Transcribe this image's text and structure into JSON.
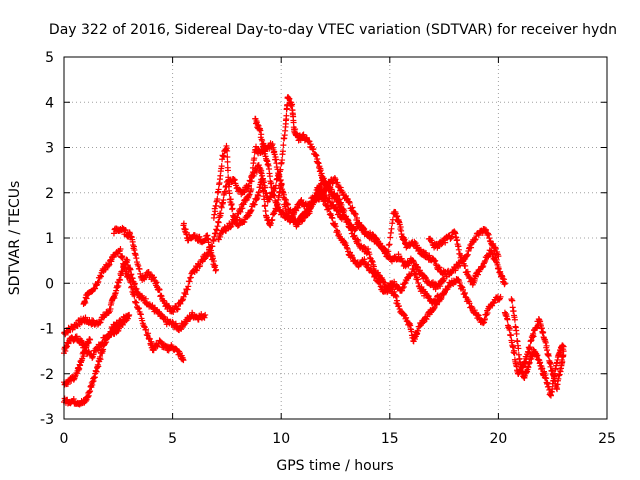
{
  "chart_data": {
    "type": "scatter",
    "title": "Day 322 of 2016, Sidereal Day-to-day VTEC variation (SDTVAR) for receiver hydn",
    "xlabel": "GPS time / hours",
    "ylabel": "SDTVAR / TECUs",
    "xlim": [
      0,
      25
    ],
    "ylim": [
      -3,
      5
    ],
    "xticks": [
      "0",
      "5",
      "10",
      "15",
      "20",
      "25"
    ],
    "yticks": [
      "-3",
      "-2",
      "-1",
      "0",
      "1",
      "2",
      "3",
      "4",
      "5"
    ],
    "grid": true,
    "marker": "+",
    "color": "#ff0000",
    "tracks": [
      [
        [
          0.0,
          -1.1
        ],
        [
          0.3,
          -1.0
        ],
        [
          0.6,
          -0.9
        ],
        [
          0.9,
          -0.8
        ],
        [
          1.2,
          -0.85
        ],
        [
          1.5,
          -0.9
        ],
        [
          1.8,
          -0.75
        ],
        [
          2.1,
          -0.6
        ],
        [
          2.3,
          -0.3
        ],
        [
          2.5,
          0.0
        ],
        [
          2.7,
          0.3
        ],
        [
          2.9,
          0.5
        ],
        [
          3.1,
          0.2
        ],
        [
          3.3,
          -0.1
        ],
        [
          3.5,
          -0.3
        ],
        [
          3.8,
          -0.4
        ],
        [
          4.1,
          -0.55
        ],
        [
          4.4,
          -0.7
        ],
        [
          4.7,
          -0.85
        ],
        [
          5.0,
          -0.9
        ],
        [
          5.3,
          -1.0
        ],
        [
          5.6,
          -0.85
        ],
        [
          5.9,
          -0.7
        ],
        [
          6.2,
          -0.75
        ],
        [
          6.5,
          -0.7
        ]
      ],
      [
        [
          0.0,
          -1.5
        ],
        [
          0.2,
          -1.3
        ],
        [
          0.5,
          -1.2
        ],
        [
          0.8,
          -1.3
        ],
        [
          1.0,
          -1.5
        ],
        [
          1.3,
          -1.6
        ],
        [
          1.6,
          -1.4
        ],
        [
          1.9,
          -1.2
        ],
        [
          2.2,
          -1.1
        ],
        [
          2.5,
          -1.0
        ],
        [
          2.8,
          -0.8
        ],
        [
          3.0,
          -0.7
        ]
      ],
      [
        [
          0.0,
          -2.6
        ],
        [
          0.3,
          -2.6
        ],
        [
          0.6,
          -2.62
        ],
        [
          0.9,
          -2.65
        ],
        [
          1.1,
          -2.5
        ],
        [
          1.3,
          -2.2
        ],
        [
          1.5,
          -1.9
        ],
        [
          1.7,
          -1.6
        ],
        [
          1.9,
          -1.3
        ],
        [
          2.1,
          -1.1
        ],
        [
          2.3,
          -0.95
        ],
        [
          2.6,
          -0.85
        ],
        [
          2.9,
          -0.75
        ]
      ],
      [
        [
          0.0,
          -2.2
        ],
        [
          0.3,
          -2.15
        ],
        [
          0.6,
          -2.0
        ],
        [
          0.8,
          -1.7
        ],
        [
          1.0,
          -1.4
        ],
        [
          1.2,
          -1.25
        ]
      ],
      [
        [
          0.9,
          -0.5
        ],
        [
          1.1,
          -0.2
        ],
        [
          1.4,
          -0.1
        ],
        [
          1.7,
          0.2
        ],
        [
          2.0,
          0.4
        ],
        [
          2.3,
          0.6
        ],
        [
          2.6,
          0.7
        ],
        [
          2.8,
          0.3
        ],
        [
          3.0,
          0.1
        ],
        [
          3.3,
          -0.4
        ],
        [
          3.6,
          -0.8
        ],
        [
          3.9,
          -1.2
        ],
        [
          4.1,
          -1.45
        ],
        [
          4.4,
          -1.3
        ],
        [
          4.7,
          -1.45
        ],
        [
          5.0,
          -1.4
        ],
        [
          5.3,
          -1.55
        ],
        [
          5.5,
          -1.7
        ]
      ],
      [
        [
          2.3,
          1.15
        ],
        [
          2.6,
          1.2
        ],
        [
          2.9,
          1.1
        ],
        [
          3.1,
          1.05
        ],
        [
          3.3,
          0.6
        ],
        [
          3.6,
          0.1
        ],
        [
          3.9,
          0.2
        ],
        [
          4.2,
          0.05
        ],
        [
          4.4,
          -0.2
        ],
        [
          4.7,
          -0.5
        ],
        [
          5.0,
          -0.6
        ],
        [
          5.3,
          -0.5
        ],
        [
          5.6,
          -0.2
        ],
        [
          5.9,
          0.2
        ],
        [
          6.2,
          0.4
        ],
        [
          6.5,
          0.6
        ],
        [
          6.8,
          0.8
        ],
        [
          7.1,
          1.3
        ],
        [
          7.3,
          1.8
        ],
        [
          7.5,
          2.2
        ],
        [
          7.8,
          2.3
        ],
        [
          8.1,
          2.0
        ],
        [
          8.4,
          2.1
        ],
        [
          8.7,
          2.4
        ],
        [
          9.0,
          2.6
        ],
        [
          9.2,
          2.2
        ],
        [
          9.4,
          1.8
        ],
        [
          9.7,
          2.1
        ],
        [
          10.0,
          2.6
        ],
        [
          10.2,
          3.5
        ],
        [
          10.3,
          4.1
        ],
        [
          10.5,
          3.9
        ],
        [
          10.6,
          3.4
        ],
        [
          10.8,
          3.2
        ],
        [
          11.0,
          3.25
        ],
        [
          11.3,
          3.1
        ],
        [
          11.6,
          2.8
        ],
        [
          11.8,
          2.5
        ],
        [
          12.0,
          2.2
        ],
        [
          12.3,
          2.0
        ],
        [
          12.6,
          1.9
        ],
        [
          12.9,
          1.6
        ]
      ],
      [
        [
          5.5,
          1.3
        ],
        [
          5.7,
          1.0
        ],
        [
          6.0,
          1.05
        ],
        [
          6.3,
          0.95
        ],
        [
          6.6,
          1.0
        ],
        [
          6.8,
          0.6
        ],
        [
          7.0,
          0.3
        ]
      ],
      [
        [
          6.9,
          1.5
        ],
        [
          7.1,
          2.0
        ],
        [
          7.3,
          2.8
        ],
        [
          7.5,
          3.0
        ],
        [
          7.6,
          2.0
        ],
        [
          7.8,
          1.5
        ],
        [
          8.0,
          1.3
        ],
        [
          8.3,
          1.4
        ],
        [
          8.6,
          1.6
        ],
        [
          8.9,
          1.9
        ],
        [
          9.1,
          2.3
        ],
        [
          9.3,
          1.5
        ],
        [
          9.5,
          1.3
        ],
        [
          9.8,
          1.7
        ],
        [
          10.0,
          2.2
        ],
        [
          10.2,
          1.6
        ],
        [
          10.4,
          1.4
        ],
        [
          10.6,
          1.6
        ],
        [
          10.9,
          1.8
        ],
        [
          11.2,
          1.7
        ],
        [
          11.5,
          1.9
        ],
        [
          11.8,
          2.1
        ],
        [
          12.1,
          1.9
        ],
        [
          12.4,
          1.7
        ],
        [
          12.7,
          1.5
        ],
        [
          13.0,
          1.4
        ],
        [
          13.3,
          1.2
        ],
        [
          13.6,
          1.3
        ],
        [
          13.9,
          1.1
        ],
        [
          14.2,
          1.0
        ],
        [
          14.5,
          0.9
        ],
        [
          14.8,
          0.7
        ],
        [
          15.1,
          0.5
        ],
        [
          15.4,
          0.6
        ],
        [
          15.7,
          0.4
        ],
        [
          16.0,
          0.5
        ],
        [
          16.3,
          0.3
        ],
        [
          16.6,
          0.1
        ],
        [
          16.9,
          0.0
        ],
        [
          17.2,
          -0.1
        ],
        [
          17.5,
          0.1
        ]
      ],
      [
        [
          7.1,
          1.0
        ],
        [
          7.4,
          1.2
        ],
        [
          7.7,
          1.3
        ],
        [
          8.0,
          1.5
        ],
        [
          8.3,
          1.8
        ],
        [
          8.6,
          2.0
        ],
        [
          8.8,
          3.0
        ],
        [
          9.0,
          2.9
        ],
        [
          9.3,
          3.0
        ],
        [
          9.6,
          3.05
        ],
        [
          9.8,
          2.6
        ],
        [
          10.1,
          2.0
        ],
        [
          10.4,
          1.6
        ],
        [
          10.7,
          1.3
        ],
        [
          11.0,
          1.5
        ],
        [
          11.3,
          1.6
        ],
        [
          11.6,
          2.0
        ],
        [
          11.9,
          2.3
        ],
        [
          12.2,
          2.1
        ],
        [
          12.5,
          1.9
        ],
        [
          12.8,
          1.6
        ],
        [
          13.1,
          1.3
        ],
        [
          13.4,
          1.0
        ],
        [
          13.7,
          0.8
        ],
        [
          14.0,
          0.7
        ],
        [
          14.3,
          0.3
        ],
        [
          14.6,
          0.1
        ],
        [
          14.9,
          -0.1
        ],
        [
          15.2,
          0.0
        ],
        [
          15.5,
          -0.2
        ],
        [
          15.8,
          0.1
        ],
        [
          16.1,
          0.3
        ],
        [
          16.4,
          -0.1
        ],
        [
          16.7,
          -0.3
        ],
        [
          17.0,
          -0.4
        ],
        [
          17.3,
          -0.3
        ]
      ],
      [
        [
          8.8,
          3.6
        ],
        [
          9.0,
          3.4
        ],
        [
          9.2,
          3.0
        ],
        [
          9.4,
          2.6
        ],
        [
          9.6,
          2.0
        ],
        [
          9.9,
          1.6
        ],
        [
          10.2,
          1.5
        ],
        [
          10.5,
          1.4
        ],
        [
          10.8,
          1.3
        ],
        [
          11.1,
          1.5
        ],
        [
          11.4,
          1.7
        ],
        [
          11.7,
          2.0
        ],
        [
          12.0,
          1.8
        ],
        [
          12.3,
          1.5
        ],
        [
          12.6,
          1.1
        ],
        [
          12.9,
          0.9
        ],
        [
          13.2,
          0.6
        ],
        [
          13.5,
          0.4
        ],
        [
          13.8,
          0.5
        ],
        [
          14.1,
          0.3
        ],
        [
          14.4,
          0.1
        ],
        [
          14.7,
          -0.2
        ],
        [
          15.0,
          -0.1
        ],
        [
          15.3,
          -0.3
        ]
      ],
      [
        [
          11.6,
          1.8
        ],
        [
          11.9,
          2.0
        ],
        [
          12.2,
          2.2
        ],
        [
          12.5,
          2.3
        ],
        [
          12.8,
          2.0
        ],
        [
          13.1,
          1.8
        ],
        [
          13.4,
          1.5
        ],
        [
          13.7,
          1.2
        ],
        [
          14.0,
          1.1
        ],
        [
          14.3,
          1.0
        ],
        [
          14.6,
          0.8
        ],
        [
          14.9,
          0.6
        ],
        [
          15.2,
          1.6
        ],
        [
          15.4,
          1.4
        ],
        [
          15.6,
          1.0
        ],
        [
          15.8,
          0.8
        ],
        [
          16.1,
          0.9
        ],
        [
          16.4,
          0.7
        ],
        [
          16.7,
          0.6
        ],
        [
          17.0,
          0.5
        ],
        [
          17.3,
          0.3
        ],
        [
          17.6,
          0.2
        ],
        [
          17.9,
          0.3
        ],
        [
          18.2,
          0.4
        ],
        [
          18.5,
          0.6
        ],
        [
          18.8,
          0.9
        ],
        [
          19.1,
          1.1
        ],
        [
          19.4,
          1.2
        ],
        [
          19.7,
          0.9
        ],
        [
          20.0,
          0.6
        ]
      ],
      [
        [
          15.3,
          -0.4
        ],
        [
          15.6,
          -0.7
        ],
        [
          15.9,
          -0.9
        ],
        [
          16.1,
          -1.3
        ],
        [
          16.3,
          -1.0
        ],
        [
          16.6,
          -0.8
        ],
        [
          16.9,
          -0.6
        ],
        [
          17.2,
          -0.4
        ],
        [
          17.5,
          -0.2
        ],
        [
          17.8,
          0.0
        ],
        [
          18.1,
          0.1
        ],
        [
          18.4,
          -0.2
        ],
        [
          18.7,
          -0.5
        ],
        [
          19.0,
          -0.7
        ],
        [
          19.3,
          -0.9
        ],
        [
          19.5,
          -0.6
        ],
        [
          19.8,
          -0.4
        ],
        [
          20.1,
          -0.3
        ]
      ],
      [
        [
          16.8,
          1.0
        ],
        [
          17.1,
          0.8
        ],
        [
          17.4,
          0.9
        ],
        [
          17.7,
          1.0
        ],
        [
          18.0,
          1.1
        ],
        [
          18.2,
          0.7
        ],
        [
          18.5,
          0.3
        ],
        [
          18.8,
          0.0
        ],
        [
          19.0,
          0.2
        ],
        [
          19.3,
          0.4
        ],
        [
          19.6,
          0.7
        ],
        [
          19.9,
          0.5
        ],
        [
          20.1,
          0.2
        ],
        [
          20.3,
          0.0
        ]
      ],
      [
        [
          20.3,
          -0.6
        ],
        [
          20.5,
          -1.0
        ],
        [
          20.7,
          -1.5
        ],
        [
          20.9,
          -2.0
        ],
        [
          21.1,
          -1.9
        ],
        [
          21.3,
          -1.6
        ],
        [
          21.5,
          -1.3
        ],
        [
          21.7,
          -1.0
        ],
        [
          21.9,
          -0.8
        ],
        [
          22.1,
          -1.2
        ],
        [
          22.3,
          -1.6
        ],
        [
          22.5,
          -2.0
        ],
        [
          22.7,
          -2.3
        ],
        [
          22.9,
          -1.8
        ],
        [
          23.0,
          -1.5
        ]
      ],
      [
        [
          20.6,
          -0.3
        ],
        [
          20.8,
          -1.0
        ],
        [
          21.0,
          -1.8
        ],
        [
          21.2,
          -2.1
        ],
        [
          21.4,
          -1.8
        ],
        [
          21.6,
          -1.5
        ],
        [
          21.8,
          -1.6
        ],
        [
          22.0,
          -1.9
        ],
        [
          22.2,
          -2.1
        ],
        [
          22.4,
          -2.5
        ],
        [
          22.6,
          -2.0
        ],
        [
          22.8,
          -1.5
        ],
        [
          23.0,
          -1.4
        ]
      ]
    ]
  }
}
